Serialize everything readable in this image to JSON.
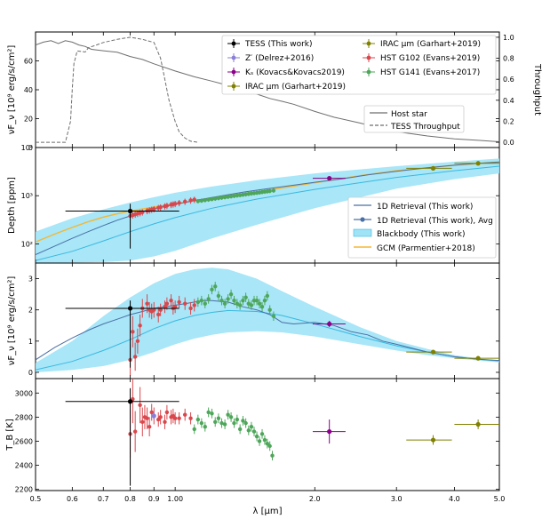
{
  "figure": {
    "xlabel": "λ [μm]",
    "x_tick_labels": [
      "0.5",
      "0.6",
      "0.7",
      "0.8",
      "0.9",
      "1.00",
      "2.0",
      "3.0",
      "4.0",
      "5.0"
    ],
    "x_tick_values": [
      0.5,
      0.6,
      0.7,
      0.8,
      0.9,
      1.0,
      2.0,
      3.0,
      4.0,
      5.0
    ],
    "xlim": [
      0.5,
      5.0
    ],
    "xscale": "log"
  },
  "colors": {
    "tess": "#000000",
    "zprime": "#8a7fd6",
    "ks": "#8b008b",
    "irac": "#808000",
    "g102": "#d9474c",
    "g141": "#4ea65a",
    "retrieval": "#4a6fa5",
    "blackbody_fill": "#9fe3f7",
    "blackbody_line": "#39b9e0",
    "gcm": "#f5b731",
    "host": "#6e6e6e",
    "throughput": "#6e6e6e"
  },
  "chart_data": [
    {
      "id": "panel1",
      "type": "line",
      "ylabel": "νF_ν [10⁹ erg/s/cm²]",
      "y2label": "Throughput",
      "ylim": [
        0,
        80
      ],
      "y2lim": [
        -0.05,
        1.05
      ],
      "y_tick_labels": [
        "0",
        "20",
        "40",
        "60"
      ],
      "y_tick_values": [
        0,
        20,
        40,
        60
      ],
      "y2_tick_labels": [
        "0.0",
        "0.2",
        "0.4",
        "0.6",
        "0.8",
        "1.0"
      ],
      "y2_tick_values": [
        0.0,
        0.2,
        0.4,
        0.6,
        0.8,
        1.0
      ],
      "host_star": {
        "name": "Host star",
        "x": [
          0.5,
          0.52,
          0.54,
          0.56,
          0.58,
          0.6,
          0.62,
          0.64,
          0.66,
          0.7,
          0.75,
          0.8,
          0.85,
          0.9,
          1.0,
          1.1,
          1.2,
          1.3,
          1.4,
          1.5,
          1.6,
          1.7,
          1.8,
          2.0,
          2.2,
          2.5,
          2.8,
          3.0,
          3.5,
          4.0,
          4.5,
          5.0
        ],
        "y": [
          71,
          73,
          74,
          72,
          74,
          73,
          71,
          70,
          68,
          67,
          66,
          63,
          61,
          58,
          53,
          49,
          46,
          43,
          40,
          37,
          34,
          32,
          30,
          25,
          21,
          17,
          13,
          11,
          8,
          6,
          5,
          4
        ]
      },
      "throughput": {
        "name": "TESS Throughput",
        "x": [
          0.5,
          0.58,
          0.595,
          0.6,
          0.605,
          0.615,
          0.64,
          0.65,
          0.67,
          0.7,
          0.75,
          0.8,
          0.85,
          0.9,
          0.93,
          0.95,
          0.97,
          1.0,
          1.02,
          1.05,
          1.08,
          1.12
        ],
        "y": [
          0.0,
          0.0,
          0.2,
          0.5,
          0.75,
          0.87,
          0.86,
          0.9,
          0.92,
          0.95,
          0.98,
          1.0,
          0.98,
          0.95,
          0.8,
          0.6,
          0.4,
          0.2,
          0.1,
          0.04,
          0.01,
          0.0
        ]
      },
      "legend_left": {
        "line1": "Host star",
        "line2": "TESS Throughput"
      }
    },
    {
      "id": "panel2",
      "type": "line",
      "ylabel": "Depth [ppm]",
      "yscale": "log",
      "ylim": [
        40,
        10000
      ],
      "y_tick_labels": [
        "10²",
        "10³",
        "10⁴"
      ],
      "y_tick_values": [
        100,
        1000,
        10000
      ],
      "retrieval": {
        "name": "1D Retrieval (This work)",
        "x": [
          0.5,
          0.55,
          0.6,
          0.65,
          0.7,
          0.75,
          0.8,
          0.85,
          0.9,
          0.95,
          1.0,
          1.1,
          1.2,
          1.3,
          1.4,
          1.5,
          1.6,
          1.8,
          2.0,
          2.3,
          2.6,
          3.0,
          3.5,
          4.0,
          4.5,
          5.0
        ],
        "y": [
          60,
          90,
          130,
          180,
          240,
          310,
          380,
          460,
          540,
          600,
          660,
          790,
          920,
          1050,
          1180,
          1300,
          1420,
          1650,
          1900,
          2250,
          2700,
          3200,
          3800,
          4300,
          4700,
          5000
        ]
      },
      "bb_upper": {
        "x": [
          0.5,
          0.6,
          0.7,
          0.8,
          0.9,
          1.0,
          1.2,
          1.5,
          2.0,
          3.0,
          4.0,
          5.0
        ],
        "y": [
          180,
          340,
          520,
          720,
          930,
          1150,
          1550,
          2100,
          2900,
          4100,
          5100,
          5900
        ]
      },
      "bb_lower": {
        "x": [
          0.5,
          0.6,
          0.7,
          0.8,
          0.9,
          1.0,
          1.2,
          1.5,
          2.0,
          3.0,
          4.0,
          5.0
        ],
        "y": [
          40,
          41,
          42,
          45,
          55,
          72,
          130,
          250,
          550,
          1400,
          2200,
          2900
        ]
      },
      "bb_mid": {
        "x": [
          0.5,
          0.6,
          0.7,
          0.8,
          0.9,
          1.0,
          1.2,
          1.5,
          2.0,
          3.0,
          4.0,
          5.0
        ],
        "y": [
          45,
          70,
          115,
          180,
          260,
          350,
          550,
          850,
          1350,
          2400,
          3300,
          4100
        ]
      },
      "gcm": {
        "name": "GCM (Parmentier+2018)",
        "x": [
          0.5,
          0.55,
          0.6,
          0.65,
          0.7,
          0.75,
          0.8,
          0.9,
          1.0,
          1.2,
          1.5,
          2.0,
          2.5,
          3.0,
          4.0,
          5.0
        ],
        "y": [
          110,
          160,
          220,
          290,
          360,
          420,
          480,
          580,
          680,
          900,
          1200,
          1850,
          2600,
          3300,
          4300,
          5000
        ]
      },
      "legend": [
        "1D Retrieval (This work)",
        "1D Retrieval (This work), Avg",
        "Blackbody (This work)",
        "GCM (Parmentier+2018)"
      ]
    },
    {
      "id": "panel3",
      "type": "line",
      "ylabel": "νF_ν [10⁹ erg/s/cm²]",
      "ylim": [
        -0.2,
        3.5
      ],
      "y_tick_labels": [
        "0",
        "1",
        "2",
        "3"
      ],
      "y_tick_values": [
        0,
        1,
        2,
        3
      ],
      "retrieval": {
        "x": [
          0.5,
          0.55,
          0.6,
          0.65,
          0.7,
          0.75,
          0.8,
          0.85,
          0.9,
          0.95,
          1.0,
          1.05,
          1.1,
          1.15,
          1.2,
          1.3,
          1.4,
          1.5,
          1.6,
          1.7,
          1.8,
          2.0,
          2.2,
          2.4,
          2.6,
          2.8,
          3.0,
          3.5,
          4.0,
          4.5,
          5.0
        ],
        "y": [
          0.4,
          0.8,
          1.1,
          1.35,
          1.55,
          1.7,
          1.85,
          1.95,
          2.05,
          2.1,
          2.15,
          2.2,
          2.25,
          2.3,
          2.3,
          2.25,
          2.1,
          2.0,
          1.85,
          1.6,
          1.55,
          1.6,
          1.5,
          1.3,
          1.2,
          1.0,
          0.9,
          0.65,
          0.5,
          0.42,
          0.38
        ]
      },
      "bb_upper": {
        "x": [
          0.5,
          0.6,
          0.7,
          0.8,
          0.9,
          1.0,
          1.1,
          1.2,
          1.3,
          1.5,
          1.7,
          2.0,
          2.5,
          3.0,
          3.5,
          4.0,
          4.5,
          5.0
        ],
        "y": [
          0.3,
          1.0,
          1.8,
          2.4,
          2.85,
          3.15,
          3.3,
          3.35,
          3.3,
          3.0,
          2.6,
          2.1,
          1.45,
          1.0,
          0.75,
          0.55,
          0.45,
          0.38
        ]
      },
      "bb_lower": {
        "x": [
          0.5,
          0.6,
          0.7,
          0.8,
          0.9,
          1.0,
          1.1,
          1.2,
          1.3,
          1.5,
          1.7,
          2.0,
          2.5,
          3.0,
          3.5,
          4.0,
          4.5,
          5.0
        ],
        "y": [
          0.0,
          0.08,
          0.2,
          0.4,
          0.65,
          0.9,
          1.08,
          1.2,
          1.28,
          1.32,
          1.28,
          1.15,
          0.9,
          0.7,
          0.55,
          0.45,
          0.38,
          0.32
        ]
      },
      "bb_mid": {
        "x": [
          0.5,
          0.6,
          0.7,
          0.8,
          0.9,
          1.0,
          1.1,
          1.2,
          1.3,
          1.5,
          1.7,
          2.0,
          2.5,
          3.0,
          3.5,
          4.0,
          4.5,
          5.0
        ],
        "y": [
          0.08,
          0.35,
          0.7,
          1.05,
          1.4,
          1.65,
          1.82,
          1.92,
          1.98,
          1.95,
          1.82,
          1.55,
          1.15,
          0.85,
          0.65,
          0.5,
          0.42,
          0.36
        ]
      },
      "tess": {
        "x": 0.8,
        "y": 2.05,
        "err": 0.25,
        "xerr": [
          0.58,
          1.02
        ]
      },
      "ks": {
        "x": 2.15,
        "y": 1.55,
        "err": 0.1,
        "xerr": [
          1.98,
          2.33
        ]
      },
      "irac": [
        {
          "x": 3.6,
          "y": 0.65,
          "err": 0.05,
          "xerr": [
            3.15,
            3.95
          ]
        },
        {
          "x": 4.5,
          "y": 0.45,
          "err": 0.04,
          "xerr": [
            4.0,
            5.0
          ]
        }
      ],
      "g102": {
        "x": [
          0.8,
          0.81,
          0.82,
          0.83,
          0.84,
          0.85,
          0.87,
          0.88,
          0.89,
          0.9,
          0.92,
          0.93,
          0.95,
          0.96,
          0.98,
          0.99,
          1.0,
          1.02,
          1.05,
          1.08,
          1.1
        ],
        "y": [
          0.4,
          1.3,
          0.5,
          1.0,
          1.5,
          2.05,
          2.2,
          2.0,
          1.95,
          2.0,
          1.85,
          2.0,
          2.1,
          2.2,
          2.3,
          2.05,
          2.1,
          2.25,
          2.2,
          2.05,
          2.15
        ],
        "err": [
          0.5,
          0.5,
          0.45,
          0.4,
          0.35,
          0.3,
          0.3,
          0.25,
          0.25,
          0.25,
          0.25,
          0.2,
          0.2,
          0.2,
          0.2,
          0.2,
          0.2,
          0.2,
          0.2,
          0.2,
          0.2
        ]
      },
      "g141": {
        "x": [
          1.12,
          1.14,
          1.16,
          1.18,
          1.2,
          1.22,
          1.24,
          1.26,
          1.28,
          1.3,
          1.32,
          1.34,
          1.36,
          1.38,
          1.4,
          1.42,
          1.44,
          1.46,
          1.48,
          1.5,
          1.52,
          1.54,
          1.56,
          1.58,
          1.6,
          1.63
        ],
        "y": [
          2.25,
          2.3,
          2.2,
          2.35,
          2.65,
          2.75,
          2.45,
          2.3,
          2.2,
          2.35,
          2.5,
          2.3,
          2.2,
          2.15,
          2.3,
          2.4,
          2.2,
          2.15,
          2.3,
          2.3,
          2.2,
          2.1,
          2.3,
          2.45,
          2.0,
          1.8
        ],
        "err": [
          0.15,
          0.15,
          0.15,
          0.15,
          0.15,
          0.15,
          0.15,
          0.15,
          0.15,
          0.15,
          0.15,
          0.15,
          0.15,
          0.15,
          0.15,
          0.15,
          0.15,
          0.15,
          0.15,
          0.15,
          0.15,
          0.15,
          0.15,
          0.15,
          0.15,
          0.15
        ]
      }
    },
    {
      "id": "panel4",
      "type": "scatter",
      "ylabel": "T_B [K]",
      "ylim": [
        2190,
        3120
      ],
      "y_tick_labels": [
        "2200",
        "2400",
        "2600",
        "2800",
        "3000"
      ],
      "y_tick_values": [
        2200,
        2400,
        2600,
        2800,
        3000
      ],
      "tess": {
        "x": 0.8,
        "y": 2930,
        "err": 110,
        "xerr": [
          0.58,
          1.02
        ],
        "err_low": 700
      },
      "ks": {
        "x": 2.15,
        "y": 2680,
        "err": 100,
        "xerr": [
          1.98,
          2.33
        ]
      },
      "irac": [
        {
          "x": 3.6,
          "y": 2610,
          "err": 40,
          "xerr": [
            3.15,
            3.95
          ]
        },
        {
          "x": 4.5,
          "y": 2740,
          "err": 40,
          "xerr": [
            4.0,
            5.0
          ]
        }
      ],
      "zprime": {
        "x": 0.9,
        "y": 2810,
        "err": 30
      },
      "g102": {
        "x": [
          0.8,
          0.81,
          0.82,
          0.84,
          0.85,
          0.86,
          0.87,
          0.88,
          0.89,
          0.9,
          0.92,
          0.93,
          0.95,
          0.96,
          0.98,
          0.99,
          1.0,
          1.02,
          1.05,
          1.08
        ],
        "y": [
          2660,
          2950,
          2680,
          2900,
          2760,
          2800,
          2790,
          2720,
          2840,
          2810,
          2780,
          2800,
          2760,
          2840,
          2800,
          2810,
          2790,
          2790,
          2820,
          2790
        ],
        "err": [
          200,
          200,
          170,
          150,
          120,
          100,
          90,
          80,
          70,
          70,
          60,
          60,
          60,
          60,
          60,
          60,
          50,
          50,
          50,
          50
        ]
      },
      "g141": {
        "x": [
          1.1,
          1.12,
          1.14,
          1.16,
          1.18,
          1.2,
          1.22,
          1.24,
          1.26,
          1.28,
          1.3,
          1.32,
          1.34,
          1.36,
          1.38,
          1.4,
          1.42,
          1.44,
          1.46,
          1.48,
          1.5,
          1.52,
          1.54,
          1.56,
          1.58,
          1.6,
          1.62
        ],
        "y": [
          2700,
          2780,
          2750,
          2720,
          2840,
          2830,
          2760,
          2790,
          2750,
          2740,
          2820,
          2800,
          2750,
          2780,
          2700,
          2770,
          2750,
          2690,
          2720,
          2680,
          2640,
          2600,
          2660,
          2610,
          2580,
          2560,
          2480
        ],
        "err": [
          40,
          40,
          40,
          40,
          40,
          40,
          40,
          40,
          40,
          40,
          40,
          40,
          40,
          40,
          40,
          40,
          40,
          40,
          40,
          40,
          40,
          40,
          40,
          40,
          40,
          40,
          40
        ]
      }
    }
  ],
  "legend_top": [
    {
      "label": "TESS (This work)",
      "color_key": "tess"
    },
    {
      "label": "Z′ (Delrez+2016)",
      "color_key": "zprime"
    },
    {
      "label": "Kₛ (Kovacs&Kovacs2019)",
      "color_key": "ks"
    },
    {
      "label": "IRAC μm (Garhart+2019)",
      "color_key": "irac"
    },
    {
      "label": "IRAC μm (Garhart+2019)",
      "color_key": "irac"
    },
    {
      "label": "HST G102 (Evans+2019)",
      "color_key": "g102"
    },
    {
      "label": "HST G141 (Evans+2017)",
      "color_key": "g141"
    }
  ]
}
